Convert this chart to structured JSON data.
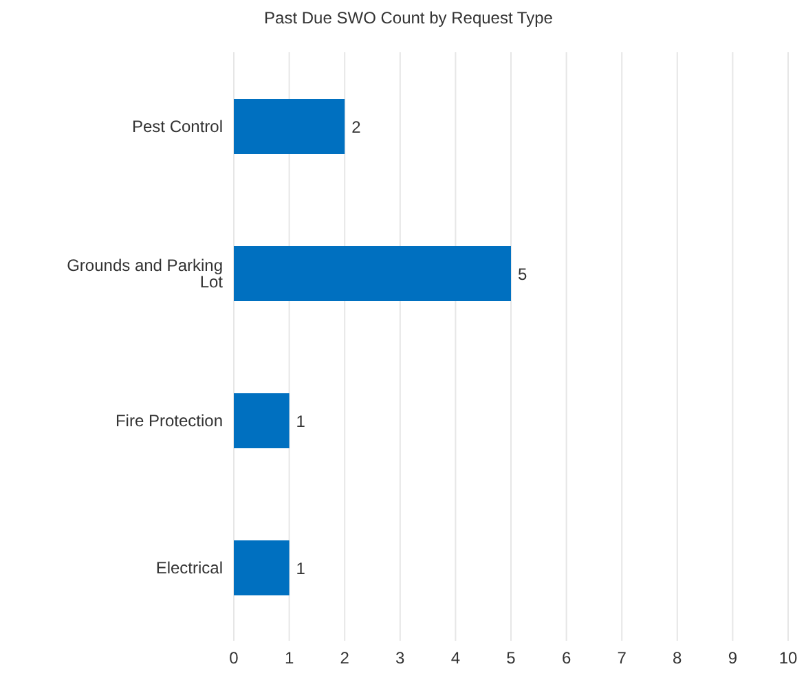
{
  "chart_data": {
    "type": "bar",
    "orientation": "horizontal",
    "title": "Past Due SWO Count by Request Type",
    "categories": [
      "Pest Control",
      "Grounds and Parking Lot",
      "Fire Protection",
      "Electrical"
    ],
    "values": [
      2,
      5,
      1,
      1
    ],
    "color": "#0070c0",
    "xlim": [
      0,
      10
    ],
    "xticks": [
      0,
      1,
      2,
      3,
      4,
      5,
      6,
      7,
      8,
      9,
      10
    ],
    "grid": "x",
    "data_labels": true
  }
}
